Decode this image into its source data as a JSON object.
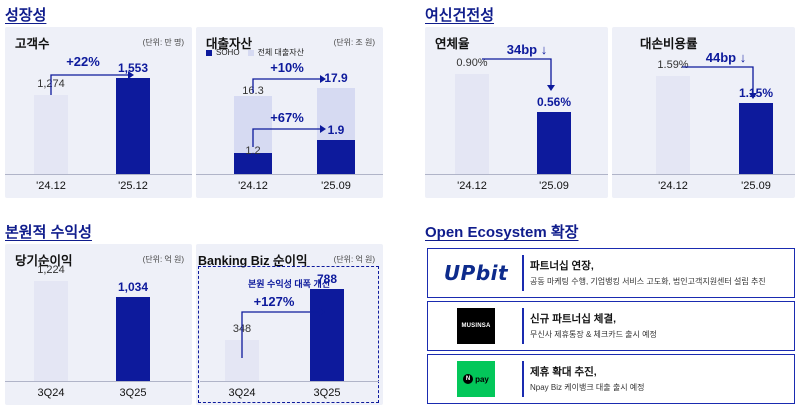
{
  "sections": {
    "growth": "성장성",
    "soundness": "여신건전성",
    "profitability": "본원적 수익성",
    "ecosystem": "Open Ecosystem 확장"
  },
  "chart_data": [
    {
      "id": "customers",
      "type": "bar",
      "title": "고객수",
      "unit": "(단위: 만 명)",
      "categories": [
        "'24.12",
        "'25.12"
      ],
      "values": [
        1274,
        1553
      ],
      "value_labels": [
        "1,274",
        "1,553"
      ],
      "growth_label": "+22%"
    },
    {
      "id": "loans",
      "type": "bar",
      "title": "대출자산",
      "unit": "(단위: 조 원)",
      "categories": [
        "'24.12",
        "'25.09"
      ],
      "legend": [
        "SOHO",
        "전체 대출자산"
      ],
      "series": [
        {
          "name": "SOHO",
          "values": [
            1.2,
            1.9
          ],
          "value_labels": [
            "1.2",
            "1.9"
          ]
        },
        {
          "name": "전체 대출자산",
          "values": [
            16.3,
            17.9
          ],
          "value_labels": [
            "16.3",
            "17.9"
          ]
        }
      ],
      "growth_labels": {
        "total": "+10%",
        "soho": "+67%"
      }
    },
    {
      "id": "delinquency",
      "type": "bar",
      "title": "연체율",
      "categories": [
        "'24.12",
        "'25.09"
      ],
      "values": [
        0.9,
        0.56
      ],
      "value_labels": [
        "0.90%",
        "0.56%"
      ],
      "change_label": "34bp ↓"
    },
    {
      "id": "credit_cost",
      "type": "bar",
      "title": "대손비용률",
      "categories": [
        "'24.12",
        "'25.09"
      ],
      "values": [
        1.59,
        1.15
      ],
      "value_labels": [
        "1.59%",
        "1.15%"
      ],
      "change_label": "44bp ↓"
    },
    {
      "id": "net_income",
      "type": "bar",
      "title": "당기순이익",
      "unit": "(단위: 억 원)",
      "categories": [
        "3Q24",
        "3Q25"
      ],
      "values": [
        1224,
        1034
      ],
      "value_labels": [
        "1,224",
        "1,034"
      ]
    },
    {
      "id": "banking_biz",
      "type": "bar",
      "title": "Banking Biz 순이익",
      "unit": "(단위: 억 원)",
      "banner": "본원 수익성 대폭 개선",
      "categories": [
        "3Q24",
        "3Q25"
      ],
      "values": [
        348,
        788
      ],
      "value_labels": [
        "348",
        "788"
      ],
      "growth_label": "+127%"
    }
  ],
  "ecosystem": [
    {
      "logo": "UPbit",
      "logo_icon": "upbit-logo",
      "head": "파트너십 연장,",
      "sub": "공동 마케팅 수행, 기업뱅킹 서비스 고도화, 법인고객지원센터 설립 추진"
    },
    {
      "logo": "MUSINSA",
      "logo_icon": "musinsa-logo",
      "head": "신규 파트너십 체결,",
      "sub": "무신사 제휴통장 & 체크카드 출시 예정"
    },
    {
      "logo": "pay",
      "logo_badge": "N",
      "logo_icon": "npay-logo",
      "head": "제휴 확대 추진,",
      "sub": "Npay Biz 케이뱅크 대출 출시 예정"
    }
  ],
  "colors": {
    "accent": "#0d1a9c",
    "panel": "#eef0f8",
    "bar_light": "#e4e6f4",
    "npay_green": "#03c75a"
  }
}
